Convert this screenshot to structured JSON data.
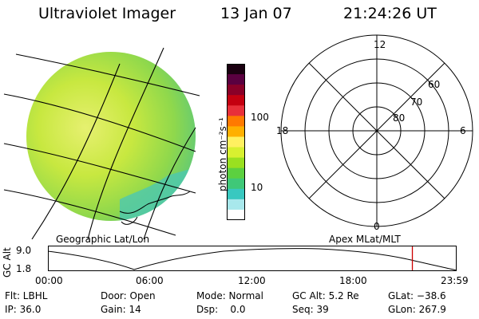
{
  "header": {
    "instrument": "Ultraviolet Imager",
    "date": "13 Jan 07",
    "time": "21:24:26 UT"
  },
  "colorbar": {
    "label": "photon cm⁻²s⁻¹",
    "ticks": [
      "100",
      "10"
    ],
    "colors": [
      "#1a0010",
      "#5a0040",
      "#8a0028",
      "#c40010",
      "#e8303a",
      "#ff7a00",
      "#ffb000",
      "#fff060",
      "#d8f030",
      "#9ae020",
      "#5cd040",
      "#3fc878",
      "#38c8c0",
      "#a8e8ec",
      "#ffffff"
    ]
  },
  "earth_view": {
    "caption": "Geographic Lat/Lon"
  },
  "polar_plot": {
    "caption": "Apex MLat/MLT",
    "mlt_labels": {
      "top": "12",
      "left": "18",
      "right": "6",
      "bottom": "0"
    },
    "lat_labels": [
      "60",
      "70",
      "80"
    ]
  },
  "altitude_plot": {
    "ylabel": "GC Alt",
    "yticks": [
      "9.0",
      "1.8"
    ],
    "xticks": [
      "00:00",
      "06:00",
      "12:00",
      "18:00",
      "23:59"
    ],
    "current_time_marker_hours": 21.4,
    "marker_color": "#cc0000"
  },
  "status": {
    "filter": "Flt: LBHL",
    "door": "Door: Open",
    "mode": "Mode: Normal",
    "gc_alt": "GC Alt: 5.2 Re",
    "glat": "GLat: −38.6",
    "ip": "IP: 36.0",
    "gain": "Gain: 14",
    "dsp": "Dsp:    0.0",
    "seq": "Seq: 39",
    "glon": "GLon: 267.9"
  }
}
